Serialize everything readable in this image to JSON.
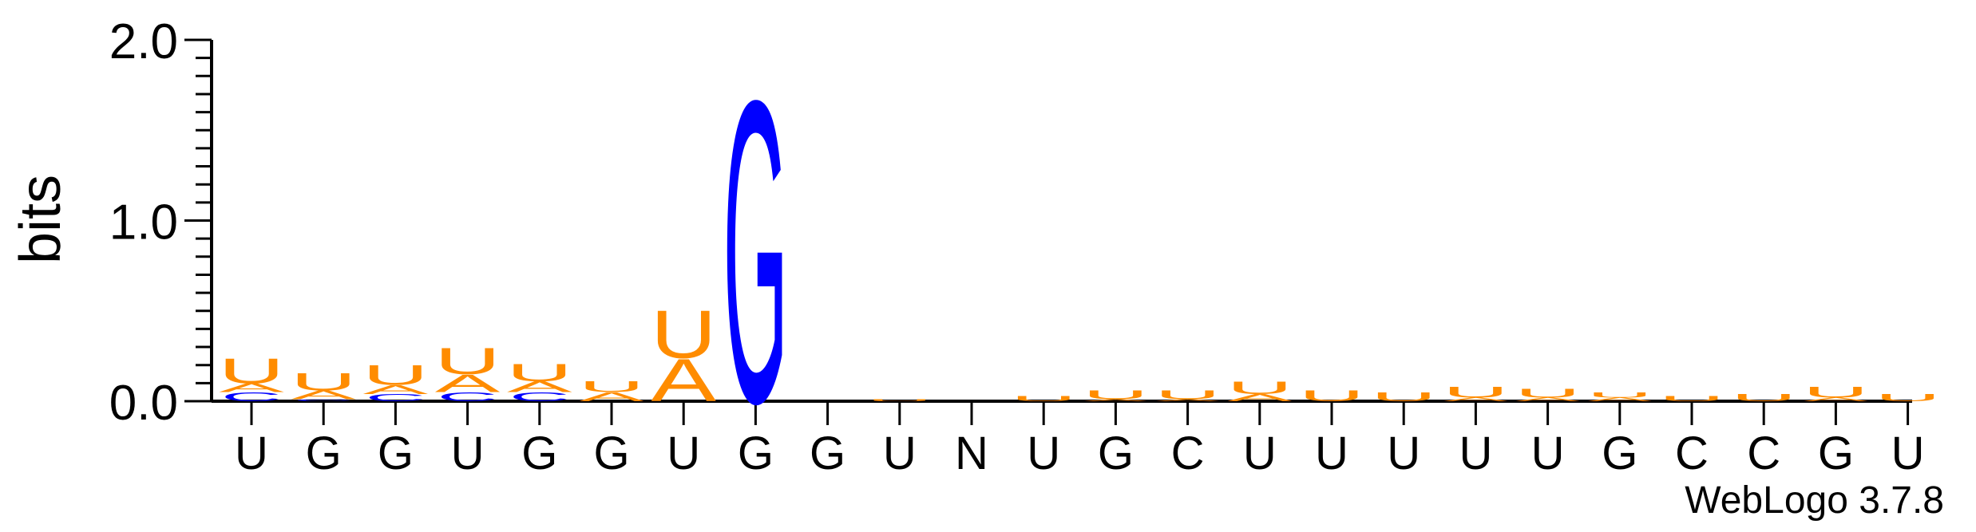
{
  "chart_data": {
    "type": "sequence-logo",
    "ylabel": "bits",
    "ylim": [
      0,
      2.0
    ],
    "yticks": [
      "0.0",
      "1.0",
      "2.0"
    ],
    "colors": {
      "A": "#ff8c00",
      "U": "#ff8c00",
      "G": "#0000ff",
      "C": "#0000ff"
    },
    "x_labels": [
      "U",
      "G",
      "G",
      "U",
      "G",
      "G",
      "U",
      "G",
      "G",
      "U",
      "N",
      "U",
      "G",
      "C",
      "U",
      "U",
      "U",
      "U",
      "U",
      "G",
      "C",
      "C",
      "G",
      "U"
    ],
    "positions": [
      [
        {
          "l": "C",
          "v": 0.05
        },
        {
          "l": "A",
          "v": 0.05
        },
        {
          "l": "U",
          "v": 0.14
        }
      ],
      [
        {
          "l": "C",
          "v": 0.01
        },
        {
          "l": "A",
          "v": 0.05
        },
        {
          "l": "U",
          "v": 0.1
        }
      ],
      [
        {
          "l": "C",
          "v": 0.04
        },
        {
          "l": "A",
          "v": 0.05
        },
        {
          "l": "U",
          "v": 0.11
        }
      ],
      [
        {
          "l": "C",
          "v": 0.05
        },
        {
          "l": "A",
          "v": 0.1
        },
        {
          "l": "U",
          "v": 0.15
        }
      ],
      [
        {
          "l": "C",
          "v": 0.05
        },
        {
          "l": "A",
          "v": 0.06
        },
        {
          "l": "U",
          "v": 0.1
        }
      ],
      [
        {
          "l": "A",
          "v": 0.05
        },
        {
          "l": "U",
          "v": 0.06
        }
      ],
      [
        {
          "l": "A",
          "v": 0.24
        },
        {
          "l": "U",
          "v": 0.27
        }
      ],
      [
        {
          "l": "G",
          "v": 1.71
        }
      ],
      [],
      [
        {
          "l": "U",
          "v": 0.01
        }
      ],
      [],
      [
        {
          "l": "U",
          "v": 0.03
        }
      ],
      [
        {
          "l": "A",
          "v": 0.01
        },
        {
          "l": "U",
          "v": 0.05
        }
      ],
      [
        {
          "l": "A",
          "v": 0.01
        },
        {
          "l": "U",
          "v": 0.05
        }
      ],
      [
        {
          "l": "A",
          "v": 0.04
        },
        {
          "l": "U",
          "v": 0.07
        }
      ],
      [
        {
          "l": "U",
          "v": 0.06
        }
      ],
      [
        {
          "l": "U",
          "v": 0.05
        }
      ],
      [
        {
          "l": "A",
          "v": 0.02
        },
        {
          "l": "U",
          "v": 0.06
        }
      ],
      [
        {
          "l": "A",
          "v": 0.02
        },
        {
          "l": "U",
          "v": 0.05
        }
      ],
      [
        {
          "l": "A",
          "v": 0.02
        },
        {
          "l": "U",
          "v": 0.03
        }
      ],
      [
        {
          "l": "U",
          "v": 0.03
        }
      ],
      [
        {
          "l": "U",
          "v": 0.04
        }
      ],
      [
        {
          "l": "A",
          "v": 0.02
        },
        {
          "l": "U",
          "v": 0.06
        }
      ],
      [
        {
          "l": "U",
          "v": 0.04
        }
      ]
    ]
  },
  "credit": "WebLogo 3.7.8"
}
